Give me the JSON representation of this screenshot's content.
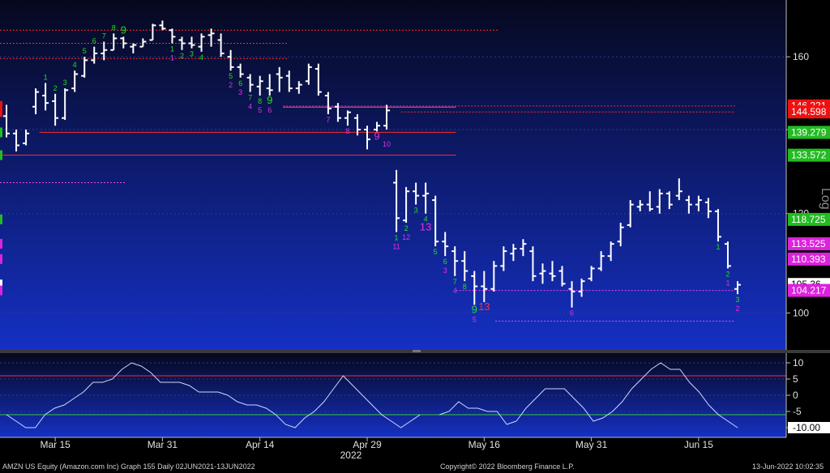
{
  "footer": {
    "left": "AMZN US Equity (Amazon.com Inc) Graph 155  Daily 02JUN2021-13JUN2022",
    "center": "Copyright© 2022 Bloomberg Finance L.P.",
    "right": "13-Jun-2022 10:02:35"
  },
  "colors": {
    "background_top": "#06081e",
    "background_bottom": "#1530c4",
    "bars": "#ffffff",
    "setup_count": "#22dd22",
    "countdown": "#dd33dd",
    "red_count": "#ff3030",
    "resistance": "#ff2a2a",
    "oscillator": "#cfd6ff",
    "osc_upper": "#ff2a2a",
    "osc_lower": "#33cc33"
  },
  "chart_data": [
    {
      "type": "ohlc",
      "scale": "log",
      "ylim": [
        94,
        176
      ],
      "y_ticks": [
        100,
        120,
        140,
        160
      ],
      "y_tick_labels": [
        "100",
        "120",
        "140",
        "160"
      ],
      "x_tick_labels": [
        "Mar 15",
        "Mar 31",
        "Apr 14",
        "Apr 29",
        "May 16",
        "May 31",
        "Jun 15"
      ],
      "x_year_label": "2022",
      "axis_caption": "Log",
      "price_tags": [
        {
          "value": "146.221",
          "color": "#ee1111",
          "text": "#ffffff"
        },
        {
          "value": "144.598",
          "color": "#ee1111",
          "text": "#ffffff"
        },
        {
          "value": "139.279",
          "color": "#22bb22",
          "text": "#ffffff"
        },
        {
          "value": "133.572",
          "color": "#22bb22",
          "text": "#ffffff"
        },
        {
          "value": "118.725",
          "color": "#22bb22",
          "text": "#ffffff"
        },
        {
          "value": "113.525",
          "color": "#dd22dd",
          "text": "#ffffff"
        },
        {
          "value": "110.393",
          "color": "#dd22dd",
          "text": "#ffffff"
        },
        {
          "value": "105.36",
          "color": "#ffffff",
          "text": "#000000"
        },
        {
          "value": "104.217",
          "color": "#dd22dd",
          "text": "#ffffff"
        }
      ],
      "bars": [
        {
          "o": 143.5,
          "h": 146.5,
          "l": 138.0,
          "c": 139.0
        },
        {
          "o": 139.0,
          "h": 140.0,
          "l": 134.5,
          "c": 136.0
        },
        {
          "o": 136.5,
          "h": 140.0,
          "l": 136.0,
          "c": 139.0
        },
        {
          "o": 146.0,
          "h": 151.0,
          "l": 144.0,
          "c": 150.0
        },
        {
          "o": 149.0,
          "h": 152.5,
          "l": 145.0,
          "c": 147.0
        },
        {
          "o": 147.5,
          "h": 149.5,
          "l": 141.0,
          "c": 143.0
        },
        {
          "o": 143.0,
          "h": 151.0,
          "l": 142.5,
          "c": 150.5
        },
        {
          "o": 151.0,
          "h": 156.0,
          "l": 150.0,
          "c": 155.0
        },
        {
          "o": 154.5,
          "h": 160.0,
          "l": 154.0,
          "c": 159.0
        },
        {
          "o": 159.0,
          "h": 163.0,
          "l": 158.0,
          "c": 161.0
        },
        {
          "o": 161.0,
          "h": 164.5,
          "l": 159.0,
          "c": 162.0
        },
        {
          "o": 162.0,
          "h": 167.0,
          "l": 162.0,
          "c": 165.5
        },
        {
          "o": 165.5,
          "h": 166.0,
          "l": 162.5,
          "c": 164.0
        },
        {
          "o": 163.0,
          "h": 164.0,
          "l": 161.0,
          "c": 163.5
        },
        {
          "o": 163.0,
          "h": 165.5,
          "l": 163.0,
          "c": 164.5
        },
        {
          "o": 165.0,
          "h": 170.0,
          "l": 165.0,
          "c": 169.5
        },
        {
          "o": 169.5,
          "h": 171.0,
          "l": 168.0,
          "c": 168.5
        },
        {
          "o": 168.0,
          "h": 168.5,
          "l": 164.0,
          "c": 166.0
        },
        {
          "o": 165.0,
          "h": 166.0,
          "l": 162.0,
          "c": 164.0
        },
        {
          "o": 164.0,
          "h": 166.0,
          "l": 162.5,
          "c": 163.5
        },
        {
          "o": 163.0,
          "h": 167.0,
          "l": 161.5,
          "c": 166.0
        },
        {
          "o": 166.5,
          "h": 168.5,
          "l": 163.0,
          "c": 167.0
        },
        {
          "o": 165.0,
          "h": 167.0,
          "l": 160.0,
          "c": 161.0
        },
        {
          "o": 160.0,
          "h": 162.0,
          "l": 156.0,
          "c": 157.0
        },
        {
          "o": 157.0,
          "h": 158.0,
          "l": 154.0,
          "c": 155.0
        },
        {
          "o": 154.0,
          "h": 155.0,
          "l": 150.0,
          "c": 152.0
        },
        {
          "o": 151.5,
          "h": 154.5,
          "l": 149.0,
          "c": 153.0
        },
        {
          "o": 151.0,
          "h": 155.0,
          "l": 149.0,
          "c": 150.5
        },
        {
          "o": 155.0,
          "h": 157.0,
          "l": 150.0,
          "c": 154.0
        },
        {
          "o": 154.5,
          "h": 156.0,
          "l": 150.0,
          "c": 151.0
        },
        {
          "o": 151.0,
          "h": 153.0,
          "l": 149.5,
          "c": 152.0
        },
        {
          "o": 153.0,
          "h": 158.0,
          "l": 152.0,
          "c": 157.0
        },
        {
          "o": 156.5,
          "h": 158.0,
          "l": 149.0,
          "c": 150.0
        },
        {
          "o": 149.0,
          "h": 150.0,
          "l": 144.0,
          "c": 145.5
        },
        {
          "o": 146.0,
          "h": 147.0,
          "l": 142.0,
          "c": 143.0
        },
        {
          "o": 143.0,
          "h": 145.0,
          "l": 141.0,
          "c": 144.5
        },
        {
          "o": 143.0,
          "h": 144.0,
          "l": 138.5,
          "c": 140.0
        },
        {
          "o": 140.0,
          "h": 141.0,
          "l": 135.0,
          "c": 137.5
        },
        {
          "o": 140.0,
          "h": 142.0,
          "l": 139.5,
          "c": 141.0
        },
        {
          "o": 141.0,
          "h": 146.5,
          "l": 140.0,
          "c": 145.0
        },
        {
          "o": 127.0,
          "h": 130.0,
          "l": 116.0,
          "c": 119.0
        },
        {
          "o": 118.5,
          "h": 126.0,
          "l": 118.0,
          "c": 125.0
        },
        {
          "o": 125.0,
          "h": 127.0,
          "l": 122.0,
          "c": 124.0
        },
        {
          "o": 124.0,
          "h": 127.0,
          "l": 120.0,
          "c": 124.5
        },
        {
          "o": 123.0,
          "h": 124.0,
          "l": 113.0,
          "c": 114.0
        },
        {
          "o": 114.0,
          "h": 116.0,
          "l": 111.0,
          "c": 113.0
        },
        {
          "o": 112.0,
          "h": 113.0,
          "l": 107.0,
          "c": 110.0
        },
        {
          "o": 110.0,
          "h": 112.0,
          "l": 106.0,
          "c": 108.0
        },
        {
          "o": 107.0,
          "h": 108.0,
          "l": 101.5,
          "c": 105.0
        },
        {
          "o": 105.0,
          "h": 108.0,
          "l": 102.0,
          "c": 104.5
        },
        {
          "o": 104.5,
          "h": 110.0,
          "l": 104.0,
          "c": 109.0
        },
        {
          "o": 109.0,
          "h": 113.0,
          "l": 108.0,
          "c": 112.0
        },
        {
          "o": 111.5,
          "h": 113.5,
          "l": 110.0,
          "c": 112.5
        },
        {
          "o": 112.5,
          "h": 114.5,
          "l": 111.0,
          "c": 113.5
        },
        {
          "o": 112.0,
          "h": 113.0,
          "l": 106.0,
          "c": 107.0
        },
        {
          "o": 107.5,
          "h": 109.5,
          "l": 105.5,
          "c": 108.0
        },
        {
          "o": 107.5,
          "h": 110.0,
          "l": 106.0,
          "c": 107.0
        },
        {
          "o": 108.0,
          "h": 109.0,
          "l": 105.0,
          "c": 105.5
        },
        {
          "o": 104.5,
          "h": 106.0,
          "l": 101.0,
          "c": 104.0
        },
        {
          "o": 104.0,
          "h": 106.5,
          "l": 103.0,
          "c": 106.0
        },
        {
          "o": 106.5,
          "h": 109.0,
          "l": 106.0,
          "c": 108.5
        },
        {
          "o": 108.5,
          "h": 112.0,
          "l": 108.0,
          "c": 111.0
        },
        {
          "o": 111.0,
          "h": 114.0,
          "l": 110.0,
          "c": 113.5
        },
        {
          "o": 114.0,
          "h": 118.0,
          "l": 113.0,
          "c": 117.0
        },
        {
          "o": 117.5,
          "h": 123.0,
          "l": 117.0,
          "c": 122.0
        },
        {
          "o": 121.5,
          "h": 123.0,
          "l": 120.5,
          "c": 122.0
        },
        {
          "o": 122.0,
          "h": 125.0,
          "l": 120.5,
          "c": 121.0
        },
        {
          "o": 121.5,
          "h": 125.5,
          "l": 120.0,
          "c": 124.5
        },
        {
          "o": 124.5,
          "h": 125.0,
          "l": 121.0,
          "c": 122.0
        },
        {
          "o": 124.0,
          "h": 128.0,
          "l": 123.0,
          "c": 125.0
        },
        {
          "o": 123.0,
          "h": 124.0,
          "l": 120.0,
          "c": 122.0
        },
        {
          "o": 122.0,
          "h": 124.0,
          "l": 120.5,
          "c": 123.0
        },
        {
          "o": 122.5,
          "h": 123.5,
          "l": 119.0,
          "c": 120.5
        },
        {
          "o": 120.5,
          "h": 121.0,
          "l": 114.0,
          "c": 115.0
        },
        {
          "o": 113.5,
          "h": 114.0,
          "l": 108.5,
          "c": 109.0
        },
        {
          "o": 104.5,
          "h": 106.0,
          "l": 103.5,
          "c": 105.3
        }
      ],
      "hlines": [
        {
          "value": 168.0,
          "x0": 0.0,
          "x1": 0.635,
          "color": "#ff2a2a",
          "dash": true
        },
        {
          "value": 164.0,
          "x0": 0.0,
          "x1": 0.365,
          "color": "#ff2a2a",
          "dash": true
        },
        {
          "value": 159.5,
          "x0": 0.0,
          "x1": 0.365,
          "color": "#ff2a2a",
          "dash": true
        },
        {
          "value": 146.2,
          "x0": 0.36,
          "x1": 0.935,
          "color": "#ff2a2a",
          "dash": true
        },
        {
          "value": 145.9,
          "x0": 0.36,
          "x1": 0.58,
          "color": "#ee44ee",
          "dash": false
        },
        {
          "value": 144.6,
          "x0": 0.51,
          "x1": 0.935,
          "color": "#ff2a2a",
          "dash": true
        },
        {
          "value": 139.3,
          "x0": 0.05,
          "x1": 0.58,
          "color": "#ff2a2a",
          "dash": false
        },
        {
          "value": 133.6,
          "x0": 0.0,
          "x1": 0.58,
          "color": "#ff2a2a",
          "dash": false
        },
        {
          "value": 127.0,
          "x0": 0.0,
          "x1": 0.16,
          "color": "#ee44ee",
          "dash": true
        },
        {
          "value": 104.2,
          "x0": 0.58,
          "x1": 0.935,
          "color": "#ee44ee",
          "dash": true
        },
        {
          "value": 98.5,
          "x0": 0.63,
          "x1": 0.935,
          "color": "#ee44ee",
          "dash": true
        }
      ],
      "count_labels": [
        {
          "bar": 4,
          "text": "1",
          "color": "#22dd22",
          "off": -1
        },
        {
          "bar": 5,
          "text": "2",
          "color": "#22dd22",
          "off": -1
        },
        {
          "bar": 6,
          "text": "3",
          "color": "#22dd22",
          "off": -1
        },
        {
          "bar": 7,
          "text": "4",
          "color": "#22dd22",
          "off": -1
        },
        {
          "bar": 8,
          "text": "5",
          "color": "#22dd22",
          "off": -1
        },
        {
          "bar": 9,
          "text": "6",
          "color": "#22dd22",
          "off": -1
        },
        {
          "bar": 10,
          "text": "7",
          "color": "#22dd22",
          "off": -1
        },
        {
          "bar": 11,
          "text": "8",
          "color": "#22dd22",
          "off": -1
        },
        {
          "bar": 12,
          "text": "9",
          "color": "#22dd22",
          "off": -1
        },
        {
          "bar": 17,
          "text": "1",
          "color": "#22dd22",
          "off": 1
        },
        {
          "bar": 18,
          "text": "2",
          "color": "#22dd22",
          "off": 1
        },
        {
          "bar": 19,
          "text": "3",
          "color": "#22dd22",
          "off": 1
        },
        {
          "bar": 20,
          "text": "4",
          "color": "#22dd22",
          "off": 1
        },
        {
          "bar": 17,
          "text": "1",
          "color": "#dd33dd",
          "off": 2
        },
        {
          "bar": 23,
          "text": "5",
          "color": "#22dd22",
          "off": 1
        },
        {
          "bar": 24,
          "text": "6",
          "color": "#22dd22",
          "off": 1
        },
        {
          "bar": 25,
          "text": "7",
          "color": "#22dd22",
          "off": 1
        },
        {
          "bar": 26,
          "text": "8",
          "color": "#22dd22",
          "off": 1
        },
        {
          "bar": 27,
          "text": "9",
          "color": "#22dd22",
          "off": 1
        },
        {
          "bar": 23,
          "text": "2",
          "color": "#dd33dd",
          "off": 2
        },
        {
          "bar": 24,
          "text": "3",
          "color": "#dd33dd",
          "off": 2
        },
        {
          "bar": 25,
          "text": "4",
          "color": "#dd33dd",
          "off": 2
        },
        {
          "bar": 26,
          "text": "5",
          "color": "#dd33dd",
          "off": 2
        },
        {
          "bar": 27,
          "text": "6",
          "color": "#dd33dd",
          "off": 2
        },
        {
          "bar": 33,
          "text": "7",
          "color": "#dd33dd",
          "off": 1
        },
        {
          "bar": 35,
          "text": "8",
          "color": "#dd33dd",
          "off": 1
        },
        {
          "bar": 38,
          "text": "9",
          "color": "#dd33dd",
          "off": 1
        },
        {
          "bar": 39,
          "text": "10",
          "color": "#dd33dd",
          "off": 2
        },
        {
          "bar": 40,
          "text": "1",
          "color": "#22dd22",
          "off": 1
        },
        {
          "bar": 41,
          "text": "2",
          "color": "#22dd22",
          "off": 1
        },
        {
          "bar": 42,
          "text": "3",
          "color": "#22dd22",
          "off": 1
        },
        {
          "bar": 43,
          "text": "4",
          "color": "#22dd22",
          "off": 1
        },
        {
          "bar": 40,
          "text": "11",
          "color": "#dd33dd",
          "off": 2
        },
        {
          "bar": 41,
          "text": "12",
          "color": "#dd33dd",
          "off": 2
        },
        {
          "bar": 44,
          "text": "5",
          "color": "#22dd22",
          "off": 1
        },
        {
          "bar": 45,
          "text": "6",
          "color": "#22dd22",
          "off": 1
        },
        {
          "bar": 46,
          "text": "7",
          "color": "#22dd22",
          "off": 1
        },
        {
          "bar": 47,
          "text": "8",
          "color": "#22dd22",
          "off": 1
        },
        {
          "bar": 48,
          "text": "9",
          "color": "#22dd22",
          "off": 1
        },
        {
          "bar": 43,
          "text": "13",
          "color": "#dd33dd",
          "off": 2
        },
        {
          "bar": 45,
          "text": "3",
          "color": "#dd33dd",
          "off": 2
        },
        {
          "bar": 46,
          "text": "4",
          "color": "#dd33dd",
          "off": 2
        },
        {
          "bar": 48,
          "text": "5",
          "color": "#dd33dd",
          "off": 2
        },
        {
          "bar": 49,
          "text": "13",
          "color": "#ff3030",
          "off": 1
        },
        {
          "bar": 58,
          "text": "6",
          "color": "#dd33dd",
          "off": 1
        },
        {
          "bar": 73,
          "text": "1",
          "color": "#22dd22",
          "off": 1
        },
        {
          "bar": 74,
          "text": "2",
          "color": "#22dd22",
          "off": 1
        },
        {
          "bar": 74,
          "text": "1",
          "color": "#dd33dd",
          "off": 2
        },
        {
          "bar": 75,
          "text": "3",
          "color": "#22dd22",
          "off": 1
        },
        {
          "bar": 75,
          "text": "2",
          "color": "#dd33dd",
          "off": 2
        }
      ],
      "x_tick_bars": [
        5,
        16,
        26,
        37,
        49,
        60,
        71
      ]
    },
    {
      "type": "line",
      "ylim": [
        -12,
        12
      ],
      "y_ticks": [
        10,
        5,
        0,
        -5,
        -10
      ],
      "y_tick_labels": [
        "10",
        "5",
        "0",
        "-5",
        "-10.00"
      ],
      "upper_threshold": 6,
      "lower_threshold": -6,
      "series": [
        {
          "values": [
            -6,
            -8,
            -10,
            -10,
            -6,
            -4,
            -3,
            -1,
            1,
            4,
            4,
            5,
            8,
            10,
            9,
            7,
            4,
            4,
            4,
            3,
            1,
            1,
            1,
            0,
            -2,
            -3,
            -3,
            -4,
            -6,
            -9,
            -10,
            -7,
            -5,
            -2,
            2,
            6,
            3,
            0,
            -3,
            -6,
            -8,
            -10,
            -8,
            -6,
            null,
            -6,
            -5,
            -2,
            -4,
            -4,
            -5,
            -5,
            -9,
            -8,
            -4,
            -1,
            2,
            2,
            2,
            -1,
            -4,
            -8,
            -7,
            -5,
            -2,
            2,
            5,
            8,
            10,
            8,
            8,
            4,
            1,
            -3,
            -6,
            -8,
            -10
          ]
        }
      ]
    }
  ]
}
